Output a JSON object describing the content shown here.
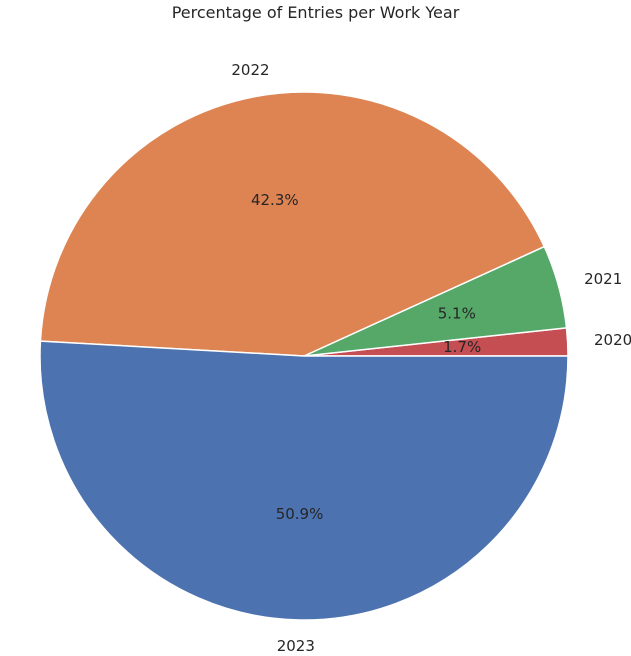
{
  "chart_data": {
    "type": "pie",
    "title": "Percentage of Entries per Work Year",
    "categories": [
      "2020",
      "2021",
      "2022",
      "2023"
    ],
    "values": [
      1.7,
      5.1,
      42.3,
      50.9
    ],
    "percent_labels": [
      "1.7%",
      "5.1%",
      "42.3%",
      "50.9%"
    ],
    "colors": [
      "#c44e52",
      "#55a868",
      "#dd8452",
      "#4c72b0"
    ],
    "start_angle_deg": 0,
    "direction": "counterclockwise",
    "legend": "none"
  }
}
